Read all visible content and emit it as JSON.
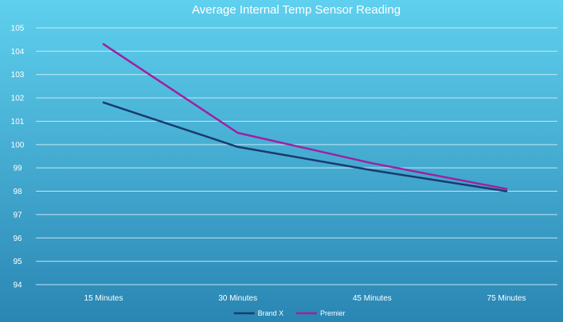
{
  "chart_data": {
    "type": "line",
    "title": "Average Internal Temp Sensor Reading",
    "xlabel": "",
    "ylabel": "",
    "categories": [
      "15 Minutes",
      "30 Minutes",
      "45 Minutes",
      "75 Minutes"
    ],
    "ylim": [
      94,
      105
    ],
    "yticks": [
      94,
      95,
      96,
      97,
      98,
      99,
      100,
      101,
      102,
      103,
      104,
      105
    ],
    "grid": true,
    "legend_position": "bottom",
    "series": [
      {
        "name": "Brand X",
        "color": "#1a3a6e",
        "values": [
          101.8,
          99.9,
          98.9,
          98.0
        ]
      },
      {
        "name": "Premier",
        "color": "#a020a0",
        "values": [
          104.3,
          100.5,
          99.2,
          98.1
        ]
      }
    ]
  },
  "colors": {
    "background_top": "#5fd0ee",
    "background_bottom": "#2a86b3",
    "grid": "#d9f1fa"
  }
}
